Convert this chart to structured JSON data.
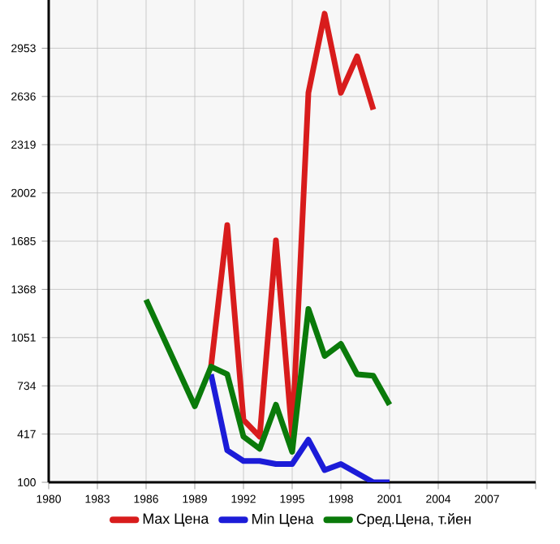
{
  "chart_data": {
    "type": "line",
    "xlim": [
      1980,
      2010
    ],
    "xticks": [
      1980,
      1983,
      1986,
      1989,
      1992,
      1995,
      1998,
      2001,
      2004,
      2007,
      {
        "value": 2010,
        "label": null
      }
    ],
    "ylim": [
      100,
      3270
    ],
    "yticks": [
      100,
      417,
      734,
      1051,
      1368,
      1685,
      2002,
      2319,
      2636,
      2953
    ],
    "grid": true,
    "legend": "bottom",
    "marker": "none",
    "line_style": "solid",
    "series": [
      {
        "name": "Max Цена",
        "color": "#d81c1c",
        "x": [
          1990,
          1991,
          1992,
          1993,
          1994,
          1995,
          1996,
          1997,
          1998,
          1999,
          2000
        ],
        "values": [
          860,
          1790,
          510,
          400,
          1690,
          400,
          2660,
          3180,
          2660,
          2900,
          2550
        ]
      },
      {
        "name": "Min Цена",
        "color": "#1c1cd8",
        "x": [
          1990,
          1991,
          1992,
          1993,
          1994,
          1995,
          1996,
          1997,
          1998,
          1999,
          2000,
          2001
        ],
        "values": [
          810,
          310,
          240,
          240,
          220,
          220,
          380,
          180,
          220,
          160,
          100,
          100
        ]
      },
      {
        "name": "Сред.Цена, т.йен",
        "color": "#0a7a0a",
        "x": [
          1986,
          1989,
          1990,
          1991,
          1992,
          1993,
          1994,
          1995,
          1996,
          1997,
          1998,
          1999,
          2000,
          2001
        ],
        "values": [
          1300,
          600,
          860,
          810,
          400,
          320,
          610,
          300,
          1240,
          930,
          1010,
          810,
          800,
          610
        ]
      }
    ]
  }
}
